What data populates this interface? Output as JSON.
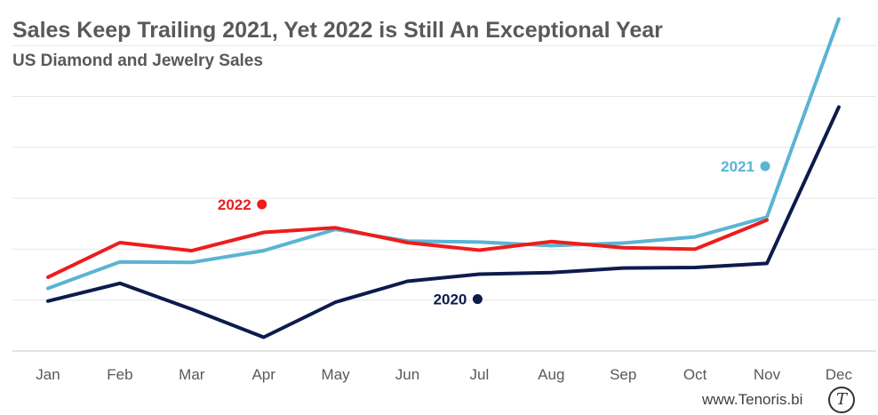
{
  "chart_data": {
    "type": "line",
    "title": "Sales Keep Trailing 2021, Yet 2022 is Still An Exceptional Year",
    "subtitle": "US Diamond and Jewelry Sales",
    "categories": [
      "Jan",
      "Feb",
      "Mar",
      "Apr",
      "May",
      "Jun",
      "Jul",
      "Aug",
      "Sep",
      "Oct",
      "Nov",
      "Dec"
    ],
    "y_axis_labels_shown": false,
    "ylim": [
      0,
      7
    ],
    "grid": true,
    "legend": "inline labels",
    "series": [
      {
        "name": "2020",
        "color": "#0d1b4c",
        "values": [
          0.98,
          1.33,
          0.82,
          0.27,
          0.96,
          1.37,
          1.51,
          1.54,
          1.63,
          1.64,
          1.72,
          4.79
        ]
      },
      {
        "name": "2021",
        "color": "#5ab4d3",
        "values": [
          1.23,
          1.75,
          1.74,
          1.97,
          2.39,
          2.16,
          2.14,
          2.07,
          2.12,
          2.24,
          2.63,
          6.52
        ]
      },
      {
        "name": "2022",
        "color": "#ee1c1c",
        "values": [
          1.45,
          2.13,
          1.97,
          2.33,
          2.42,
          2.13,
          1.98,
          2.15,
          2.03,
          2.0,
          2.57,
          null
        ]
      }
    ],
    "series_label_positions": [
      {
        "series": "2020",
        "x": "Jul",
        "y": 1.02
      },
      {
        "series": "2021",
        "x": "Nov",
        "y": 3.63
      },
      {
        "series": "2022",
        "x": "Apr",
        "y": 2.88
      }
    ]
  },
  "source": "www.Tenoris.bi",
  "logo_glyph": "T"
}
